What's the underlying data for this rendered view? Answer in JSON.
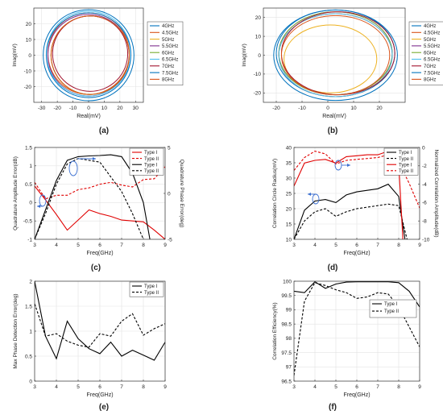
{
  "chart_data": [
    {
      "id": "a",
      "type": "scatter",
      "panel_label": "(a)",
      "xlabel": "Real(mV)",
      "ylabel": "Imag(mV)",
      "xlim": [
        -35,
        35
      ],
      "ylim": [
        -30,
        30
      ],
      "xticks": [
        -30,
        -20,
        -10,
        0,
        10,
        20,
        30
      ],
      "yticks": [
        -20,
        -10,
        0,
        10,
        20
      ],
      "legend_position": "right",
      "series": [
        {
          "name": "4GHz",
          "color": "#0072BD",
          "cx": 0,
          "cy": 0,
          "r": 29
        },
        {
          "name": "4.5GHz",
          "color": "#D95319",
          "cx": 0,
          "cy": 1,
          "r": 26
        },
        {
          "name": "5GHz",
          "color": "#EDB120",
          "cx": 1,
          "cy": 0,
          "r": 25
        },
        {
          "name": "5.5GHz",
          "color": "#7E2F8E",
          "cx": 0,
          "cy": 0,
          "r": 26
        },
        {
          "name": "6GHz",
          "color": "#77AC30",
          "cx": 1,
          "cy": 0,
          "r": 25
        },
        {
          "name": "6.5GHz",
          "color": "#4DBEEE",
          "cx": 0,
          "cy": 1,
          "r": 27
        },
        {
          "name": "7GHz",
          "color": "#A2142F",
          "cx": 1,
          "cy": 1,
          "r": 24
        },
        {
          "name": "7.5GHz",
          "color": "#0072BD",
          "cx": 0,
          "cy": 0,
          "r": 27
        },
        {
          "name": "8GHz",
          "color": "#D95319",
          "cx": 1,
          "cy": 0,
          "r": 25
        }
      ]
    },
    {
      "id": "b",
      "type": "scatter",
      "panel_label": "(b)",
      "xlabel": "Real(mV)",
      "ylabel": "Imag(mV)",
      "xlim": [
        -25,
        30
      ],
      "ylim": [
        -25,
        25
      ],
      "xticks": [
        -20,
        -10,
        0,
        10,
        20
      ],
      "yticks": [
        -20,
        -10,
        0,
        10,
        20
      ],
      "legend_position": "right",
      "series": [
        {
          "name": "4GHz",
          "color": "#0072BD",
          "cx": 3,
          "cy": 1,
          "r": 23
        },
        {
          "name": "4.5GHz",
          "color": "#D95319",
          "cx": 3,
          "cy": 0,
          "r": 22
        },
        {
          "name": "5GHz",
          "color": "#EDB120",
          "cx": 1,
          "cy": -2,
          "r": 18
        },
        {
          "name": "5.5GHz",
          "color": "#7E2F8E",
          "cx": 3,
          "cy": 1,
          "r": 22
        },
        {
          "name": "6GHz",
          "color": "#77AC30",
          "cx": 3,
          "cy": 1,
          "r": 22
        },
        {
          "name": "6.5GHz",
          "color": "#4DBEEE",
          "cx": 3,
          "cy": 0,
          "r": 22
        },
        {
          "name": "7GHz",
          "color": "#A2142F",
          "cx": 4,
          "cy": 1,
          "r": 22
        },
        {
          "name": "7.5GHz",
          "color": "#0072BD",
          "cx": 3,
          "cy": 0,
          "r": 24
        },
        {
          "name": "8GHz",
          "color": "#D95319",
          "cx": 3,
          "cy": 0,
          "r": 21
        }
      ]
    },
    {
      "id": "c",
      "type": "line",
      "panel_label": "(c)",
      "xlabel": "Freq(GHz)",
      "ylabel": "Quadrature Amplitude Error(dB)",
      "y2label": "Quadrature Phase Error(deg)",
      "xlim": [
        3,
        9
      ],
      "ylim": [
        -1,
        1.5
      ],
      "y2lim": [
        -5,
        5
      ],
      "xticks": [
        3,
        4,
        5,
        6,
        7,
        8,
        9
      ],
      "yticks": [
        -1,
        -0.5,
        0,
        0.5,
        1,
        1.5
      ],
      "y2ticks": [
        -5,
        0,
        5
      ],
      "legend_position": "top-right",
      "series": [
        {
          "name": "Type I",
          "axis": "right",
          "color": "#e00000",
          "dash": false,
          "x": [
            3,
            3.5,
            4,
            4.5,
            5,
            5.5,
            6,
            6.5,
            7,
            7.5,
            8,
            8.5,
            9
          ],
          "y": [
            0.8,
            -0.7,
            -2.3,
            -4.0,
            -2.9,
            -1.8,
            -2.2,
            -2.5,
            -2.9,
            -3.0,
            -3.1,
            -4.0,
            -5.0
          ]
        },
        {
          "name": "Type II",
          "axis": "right",
          "color": "#e00000",
          "dash": true,
          "x": [
            3,
            3.5,
            4,
            4.5,
            5,
            5.5,
            6,
            6.5,
            7,
            7.5,
            8,
            8.5,
            9
          ],
          "y": [
            1.2,
            -0.6,
            -0.2,
            -0.2,
            0.4,
            0.6,
            1.0,
            1.2,
            0.9,
            0.7,
            1.5,
            1.6,
            2.9
          ]
        },
        {
          "name": "Type I",
          "axis": "left",
          "color": "#000000",
          "dash": false,
          "x": [
            3,
            3.5,
            4,
            4.5,
            5,
            5.5,
            6,
            6.5,
            7,
            7.5,
            8,
            8.3
          ],
          "y": [
            -1.0,
            -0.2,
            0.6,
            1.15,
            1.25,
            1.27,
            1.28,
            1.3,
            1.25,
            0.8,
            0.0,
            -1.0
          ]
        },
        {
          "name": "Type II",
          "axis": "left",
          "color": "#000000",
          "dash": true,
          "x": [
            3,
            3.5,
            4,
            4.5,
            5,
            5.5,
            6,
            6.5,
            7,
            7.5,
            8
          ],
          "y": [
            -1.0,
            -0.3,
            0.5,
            1.05,
            1.2,
            1.15,
            1.1,
            0.7,
            0.3,
            -0.3,
            -1.0
          ]
        }
      ]
    },
    {
      "id": "d",
      "type": "line",
      "panel_label": "(d)",
      "xlabel": "Freq(GHz)",
      "ylabel": "Correlation Circle Radius(mV)",
      "y2label": "Normalized Correlation Amplitude(dB)",
      "xlim": [
        3,
        9
      ],
      "ylim": [
        10,
        40
      ],
      "y2lim": [
        -10,
        0
      ],
      "xticks": [
        3,
        4,
        5,
        6,
        7,
        8,
        9
      ],
      "yticks": [
        10,
        15,
        20,
        25,
        30,
        35,
        40
      ],
      "y2ticks": [
        -10,
        -8,
        -6,
        -4,
        -2,
        0
      ],
      "legend_position": "top-right",
      "series": [
        {
          "name": "Type I",
          "axis": "left",
          "color": "#000000",
          "dash": false,
          "x": [
            3,
            3.5,
            4,
            4.5,
            5,
            5.5,
            6,
            6.5,
            7,
            7.5,
            8,
            8.3
          ],
          "y": [
            10,
            19.5,
            22.5,
            23,
            22,
            24.5,
            25.5,
            26,
            26.5,
            28,
            24,
            10
          ]
        },
        {
          "name": "Type II",
          "axis": "left",
          "color": "#000000",
          "dash": true,
          "x": [
            3,
            3.5,
            4,
            4.5,
            5,
            5.5,
            6,
            6.5,
            7,
            7.5,
            8,
            8.4
          ],
          "y": [
            10,
            16,
            19,
            20,
            17.5,
            19,
            20,
            20.5,
            21,
            21.5,
            21,
            10
          ]
        },
        {
          "name": "Type I",
          "axis": "right",
          "color": "#e00000",
          "dash": false,
          "x": [
            3,
            3.5,
            4,
            4.5,
            5,
            5.5,
            6,
            6.5,
            7,
            7.5,
            8,
            8.2
          ],
          "y": [
            -4.2,
            -1.7,
            -1.4,
            -1.3,
            -1.7,
            -1.0,
            -0.9,
            -0.8,
            -0.8,
            -0.4,
            -1.8,
            -10
          ]
        },
        {
          "name": "Type II",
          "axis": "right",
          "color": "#e00000",
          "dash": true,
          "x": [
            3,
            3.5,
            4,
            4.5,
            5,
            5.5,
            6,
            6.5,
            7,
            7.5,
            8,
            8.5,
            9
          ],
          "y": [
            -2.5,
            -1.1,
            -0.4,
            -0.7,
            -1.8,
            -1.4,
            -1.3,
            -1.2,
            -1.1,
            -0.8,
            -1.6,
            -3.9,
            -6.6
          ]
        }
      ],
      "annotations": [
        "arrow-left",
        "arrow-right"
      ]
    },
    {
      "id": "e",
      "type": "line",
      "panel_label": "(e)",
      "xlabel": "Freq(GHz)",
      "ylabel": "Max Phase Detection Error(deg)",
      "xlim": [
        3,
        9
      ],
      "ylim": [
        0,
        2
      ],
      "xticks": [
        3,
        4,
        5,
        6,
        7,
        8,
        9
      ],
      "yticks": [
        0,
        0.5,
        1,
        1.5,
        2
      ],
      "legend_position": "top-right",
      "series": [
        {
          "name": "Type I",
          "color": "#000000",
          "dash": false,
          "x": [
            3,
            3.5,
            4,
            4.5,
            5,
            5.5,
            6,
            6.5,
            7,
            7.5,
            8,
            8.5,
            9
          ],
          "y": [
            2.0,
            0.9,
            0.45,
            1.2,
            0.85,
            0.65,
            0.55,
            0.78,
            0.5,
            0.62,
            0.52,
            0.42,
            0.78
          ]
        },
        {
          "name": "Type II",
          "color": "#000000",
          "dash": true,
          "x": [
            3,
            3.5,
            4,
            4.5,
            5,
            5.5,
            6,
            6.5,
            7,
            7.5,
            8,
            8.5,
            9
          ],
          "y": [
            1.55,
            0.9,
            0.95,
            0.8,
            0.72,
            0.68,
            0.95,
            0.9,
            1.2,
            1.35,
            0.92,
            1.05,
            1.15
          ]
        }
      ]
    },
    {
      "id": "f",
      "type": "line",
      "panel_label": "(f)",
      "xlabel": "Freq(GHz)",
      "ylabel": "Correlation Efficiency(%)",
      "xlim": [
        3,
        9
      ],
      "ylim": [
        96.5,
        100
      ],
      "xticks": [
        3,
        4,
        5,
        6,
        7,
        8,
        9
      ],
      "yticks": [
        96.5,
        97,
        97.5,
        98,
        98.5,
        99,
        99.5,
        100
      ],
      "legend_position": "right",
      "series": [
        {
          "name": "Type I",
          "color": "#000000",
          "dash": false,
          "x": [
            3,
            3.5,
            4,
            4.5,
            5,
            5.5,
            6,
            6.5,
            7,
            7.5,
            8,
            8.5,
            9
          ],
          "y": [
            99.65,
            99.6,
            99.98,
            99.75,
            99.9,
            99.97,
            99.98,
            99.98,
            99.98,
            99.98,
            99.95,
            99.65,
            99.1
          ]
        },
        {
          "name": "Type II",
          "color": "#000000",
          "dash": true,
          "x": [
            3,
            3.5,
            4,
            4.5,
            5,
            5.5,
            6,
            6.5,
            7,
            7.5,
            8,
            8.5,
            9
          ],
          "y": [
            96.7,
            99.3,
            99.95,
            99.85,
            99.7,
            99.6,
            99.4,
            99.45,
            99.6,
            99.55,
            99.1,
            98.4,
            97.7
          ]
        }
      ]
    }
  ]
}
